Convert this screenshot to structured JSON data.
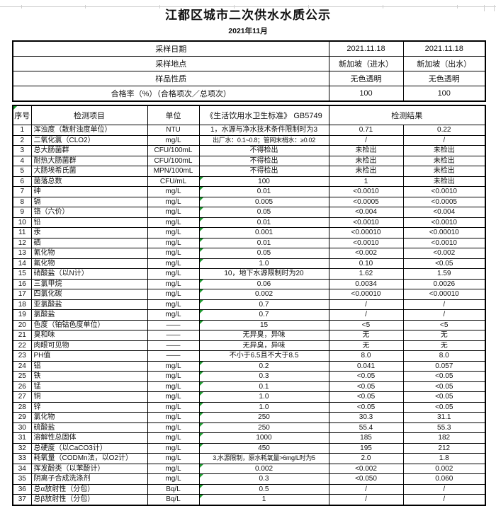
{
  "page": {
    "title": "江都区城市二次供水水质公示",
    "subtitle": "2021年11月"
  },
  "colors": {
    "border": "#000000",
    "text": "#111111",
    "flag_green": "#1e9b30",
    "gridline_gray": "#cfcfcf"
  },
  "summary": {
    "rows": [
      {
        "label": "采样日期",
        "v1": "2021.11.18",
        "v2": "2021.11.18"
      },
      {
        "label": "采样地点",
        "v1": "新加坡（进水）",
        "v2": "新加坡（出水）"
      },
      {
        "label": "样品性质",
        "v1": "无色透明",
        "v2": "无色透明"
      },
      {
        "label": "合格率（%）（合格项次／总项次）",
        "v1": "100",
        "v2": "100"
      }
    ]
  },
  "table": {
    "headers": {
      "seq": "序号",
      "item": "检测项目",
      "unit": "单位",
      "standard": "《生活饮用水卫生标准》 GB5749",
      "result": "检测结果"
    },
    "rows": [
      {
        "seq": "1",
        "item": "浑浊度（散射浊度单位）",
        "unit": "NTU",
        "standard": "1，水源与净水技术条件限制时为3",
        "result1": "0.71",
        "result2": "0.22",
        "flag": false
      },
      {
        "seq": "2",
        "item": "二氧化氯（CLO2）",
        "unit": "mg/L",
        "standard": "出厂水：0.1~0.8；管网末梢水：≥0.02",
        "result1": "/",
        "result2": "/",
        "flag": false
      },
      {
        "seq": "3",
        "item": "总大肠菌群",
        "unit": "CFU/100mL",
        "standard": "不得检出",
        "result1": "未检出",
        "result2": "未检出",
        "flag": false
      },
      {
        "seq": "4",
        "item": "耐热大肠菌群",
        "unit": "CFU/100mL",
        "standard": "不得检出",
        "result1": "未检出",
        "result2": "未检出",
        "flag": false
      },
      {
        "seq": "5",
        "item": "大肠埃希氏菌",
        "unit": "MPN/100mL",
        "standard": "不得检出",
        "result1": "未检出",
        "result2": "未检出",
        "flag": false
      },
      {
        "seq": "6",
        "item": "菌落总数",
        "unit": "CFU/mL",
        "standard": "100",
        "result1": "1",
        "result2": "未检出",
        "flag": true
      },
      {
        "seq": "7",
        "item": "砷",
        "unit": "mg/L",
        "standard": "0.01",
        "result1": "<0.0010",
        "result2": "<0.0010",
        "flag": true
      },
      {
        "seq": "8",
        "item": "镉",
        "unit": "mg/L",
        "standard": "0.005",
        "result1": "<0.0005",
        "result2": "<0.0005",
        "flag": true
      },
      {
        "seq": "9",
        "item": "铬（六价）",
        "unit": "mg/L",
        "standard": "0.05",
        "result1": "<0.004",
        "result2": "<0.004",
        "flag": true
      },
      {
        "seq": "10",
        "item": "铅",
        "unit": "mg/L",
        "standard": "0.01",
        "result1": "<0.0010",
        "result2": "<0.0010",
        "flag": true
      },
      {
        "seq": "11",
        "item": "汞",
        "unit": "mg/L",
        "standard": "0.001",
        "result1": "<0.00010",
        "result2": "<0.00010",
        "flag": true
      },
      {
        "seq": "12",
        "item": "硒",
        "unit": "mg/L",
        "standard": "0.01",
        "result1": "<0.0010",
        "result2": "<0.0010",
        "flag": true
      },
      {
        "seq": "13",
        "item": "氰化物",
        "unit": "mg/L",
        "standard": "0.05",
        "result1": "<0.002",
        "result2": "<0.002",
        "flag": true
      },
      {
        "seq": "14",
        "item": "氟化物",
        "unit": "mg/L",
        "standard": "1.0",
        "result1": "0.10",
        "result2": "<0.05",
        "flag": true
      },
      {
        "seq": "15",
        "item": "硝酸盐（以N计）",
        "unit": "mg/L",
        "standard": "10，地下水源限制时为20",
        "result1": "1.62",
        "result2": "1.59",
        "flag": false
      },
      {
        "seq": "16",
        "item": "三氯甲烷",
        "unit": "mg/L",
        "standard": "0.06",
        "result1": "0.0034",
        "result2": "0.0026",
        "flag": true
      },
      {
        "seq": "17",
        "item": "四氯化碳",
        "unit": "mg/L",
        "standard": "0.002",
        "result1": "<0.00010",
        "result2": "<0.00010",
        "flag": true
      },
      {
        "seq": "18",
        "item": "亚氯酸盐",
        "unit": "mg/L",
        "standard": "0.7",
        "result1": "/",
        "result2": "/",
        "flag": true
      },
      {
        "seq": "19",
        "item": "氯酸盐",
        "unit": "mg/L",
        "standard": "0.7",
        "result1": "/",
        "result2": "/",
        "flag": true
      },
      {
        "seq": "20",
        "item": "色度（铂钴色度单位）",
        "unit": "——",
        "standard": "15",
        "result1": "<5",
        "result2": "<5",
        "flag": true
      },
      {
        "seq": "21",
        "item": "臭和味",
        "unit": "——",
        "standard": "无异臭，异味",
        "result1": "无",
        "result2": "无",
        "flag": false
      },
      {
        "seq": "22",
        "item": "肉眼可见物",
        "unit": "——",
        "standard": "无异臭，异味",
        "result1": "无",
        "result2": "无",
        "flag": false
      },
      {
        "seq": "23",
        "item": "PH值",
        "unit": "——",
        "standard": "不小于6.5且不大于8.5",
        "result1": "8.0",
        "result2": "8.0",
        "flag": false
      },
      {
        "seq": "24",
        "item": "铝",
        "unit": "mg/L",
        "standard": "0.2",
        "result1": "0.041",
        "result2": "0.057",
        "flag": true
      },
      {
        "seq": "25",
        "item": "铁",
        "unit": "mg/L",
        "standard": "0.3",
        "result1": "<0.05",
        "result2": "<0.05",
        "flag": true
      },
      {
        "seq": "26",
        "item": "锰",
        "unit": "mg/L",
        "standard": "0.1",
        "result1": "<0.05",
        "result2": "<0.05",
        "flag": true
      },
      {
        "seq": "27",
        "item": "铜",
        "unit": "mg/L",
        "standard": "1.0",
        "result1": "<0.05",
        "result2": "<0.05",
        "flag": true
      },
      {
        "seq": "28",
        "item": "锌",
        "unit": "mg/L",
        "standard": "1.0",
        "result1": "<0.05",
        "result2": "<0.05",
        "flag": true
      },
      {
        "seq": "29",
        "item": "氯化物",
        "unit": "mg/L",
        "standard": "250",
        "result1": "30.3",
        "result2": "31.1",
        "flag": true
      },
      {
        "seq": "30",
        "item": "硫酸盐",
        "unit": "mg/L",
        "standard": "250",
        "result1": "55.4",
        "result2": "55.3",
        "flag": true
      },
      {
        "seq": "31",
        "item": "溶解性总固体",
        "unit": "mg/L",
        "standard": "1000",
        "result1": "185",
        "result2": "182",
        "flag": true
      },
      {
        "seq": "32",
        "item": "总硬度（以CaCO3计）",
        "unit": "mg/L",
        "standard": "450",
        "result1": "195",
        "result2": "212",
        "flag": true
      },
      {
        "seq": "33",
        "item": "耗氧量（CODMn法，以O2计）",
        "unit": "mg/L",
        "standard": "3,水源限制，原水耗氧量>6mg/L时为5",
        "result1": "2.0",
        "result2": "1.8",
        "flag": false
      },
      {
        "seq": "34",
        "item": "挥发酚类（以苯酚计）",
        "unit": "mg/L",
        "standard": "0.002",
        "result1": "<0.002",
        "result2": "0.002",
        "flag": true
      },
      {
        "seq": "35",
        "item": "阴离子合成洗涤剂",
        "unit": "mg/L",
        "standard": "0.3",
        "result1": "<0.050",
        "result2": "0.060",
        "flag": true
      },
      {
        "seq": "36",
        "item": "总α放射性（分包）",
        "unit": "Bq/L",
        "standard": "0.5",
        "result1": "/",
        "result2": "/",
        "flag": true
      },
      {
        "seq": "37",
        "item": "总β放射性（分包）",
        "unit": "Bq/L",
        "standard": "1",
        "result1": "/",
        "result2": "/",
        "flag": true
      }
    ]
  }
}
